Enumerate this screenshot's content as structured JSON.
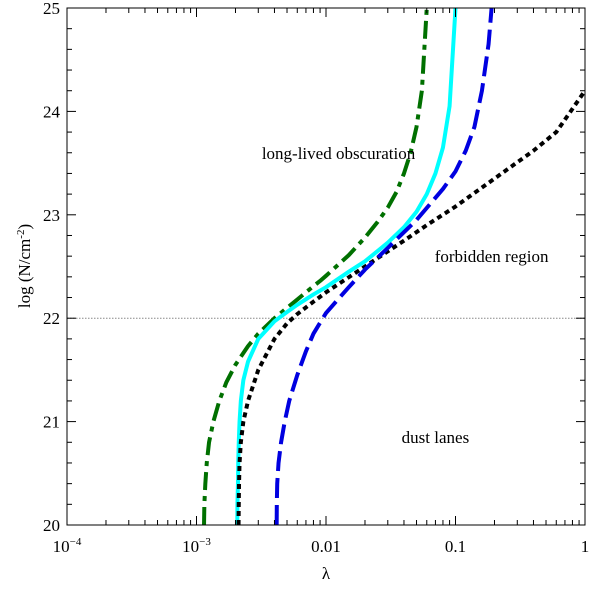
{
  "chart_data": {
    "type": "line",
    "title": "",
    "xlabel": "λ",
    "ylabel": "log (N/cm",
    "ylabel_sup": "-2",
    "ylabel_end": ")",
    "xscale": "log",
    "xlim": [
      0.0001,
      1
    ],
    "ylim": [
      20,
      25
    ],
    "x_ticks": [
      {
        "value": 0.0001,
        "base": "10",
        "exp": "−4"
      },
      {
        "value": 0.001,
        "base": "10",
        "exp": "−3"
      },
      {
        "value": 0.01,
        "base": "0.01",
        "exp": ""
      },
      {
        "value": 0.1,
        "base": "0.1",
        "exp": ""
      },
      {
        "value": 1,
        "base": "1",
        "exp": ""
      }
    ],
    "y_ticks": [
      "20",
      "21",
      "22",
      "23",
      "24",
      "25"
    ],
    "reference_line": {
      "y": 22,
      "style": "dotted",
      "color": "#888888"
    },
    "annotations": [
      {
        "text": "long-lived obscuration",
        "x": 0.0125,
        "y": 23.6
      },
      {
        "text": "forbidden region",
        "x": 0.19,
        "y": 22.6
      },
      {
        "text": "dust lanes",
        "x": 0.07,
        "y": 20.85
      }
    ],
    "series": [
      {
        "color": "#007000",
        "dash": "dashdot",
        "x": [
          0.001143,
          0.00115,
          0.00117,
          0.0012,
          0.00125,
          0.00135,
          0.0015,
          0.0017,
          0.002,
          0.0025,
          0.003,
          0.004,
          0.005,
          0.006,
          0.007,
          0.008,
          0.009,
          0.01,
          0.012,
          0.015,
          0.02,
          0.025,
          0.03,
          0.035,
          0.04,
          0.045,
          0.05,
          0.055,
          0.06
        ],
        "y": [
          20.0,
          20.2,
          20.4,
          20.6,
          20.8,
          21.0,
          21.2,
          21.38,
          21.55,
          21.73,
          21.85,
          22.0,
          22.1,
          22.18,
          22.25,
          22.31,
          22.36,
          22.41,
          22.5,
          22.61,
          22.78,
          22.93,
          23.07,
          23.22,
          23.4,
          23.6,
          23.85,
          24.2,
          25.0
        ]
      },
      {
        "color": "#00ffff",
        "dash": "solid",
        "x": [
          0.002065,
          0.00207,
          0.00209,
          0.0021,
          0.00212,
          0.00215,
          0.0022,
          0.0023,
          0.0025,
          0.003,
          0.004,
          0.005,
          0.006,
          0.008,
          0.01,
          0.015,
          0.02,
          0.03,
          0.04,
          0.05,
          0.06,
          0.07,
          0.08,
          0.09,
          0.1
        ],
        "y": [
          20.0,
          20.2,
          20.4,
          20.6,
          20.8,
          21.0,
          21.2,
          21.4,
          21.58,
          21.8,
          21.97,
          22.06,
          22.13,
          22.23,
          22.3,
          22.45,
          22.55,
          22.73,
          22.88,
          23.03,
          23.2,
          23.4,
          23.65,
          24.05,
          25.0
        ]
      },
      {
        "color": "#000000",
        "dash": "dotted",
        "x": [
          0.002112,
          0.00212,
          0.00213,
          0.00215,
          0.0022,
          0.0023,
          0.0025,
          0.003,
          0.004,
          0.005,
          0.006,
          0.008,
          0.01,
          0.02,
          0.04,
          0.06,
          0.1,
          0.2,
          0.4,
          0.6,
          1.0
        ],
        "y": [
          20.0,
          20.2,
          20.4,
          20.6,
          20.8,
          21.0,
          21.2,
          21.5,
          21.8,
          21.95,
          22.04,
          22.16,
          22.25,
          22.5,
          22.75,
          22.9,
          23.08,
          23.35,
          23.62,
          23.8,
          24.2
        ]
      },
      {
        "color": "#0000e0",
        "dash": "dashed",
        "x": [
          0.00416,
          0.00417,
          0.0042,
          0.0043,
          0.0045,
          0.0048,
          0.0052,
          0.006,
          0.007,
          0.008,
          0.01,
          0.015,
          0.02,
          0.03,
          0.05,
          0.08,
          0.1,
          0.12,
          0.14,
          0.16,
          0.18,
          0.19
        ],
        "y": [
          20.0,
          20.2,
          20.4,
          20.6,
          20.8,
          21.0,
          21.2,
          21.45,
          21.68,
          21.85,
          22.05,
          22.3,
          22.47,
          22.68,
          22.95,
          23.25,
          23.42,
          23.62,
          23.85,
          24.2,
          24.65,
          25.0
        ]
      }
    ]
  }
}
